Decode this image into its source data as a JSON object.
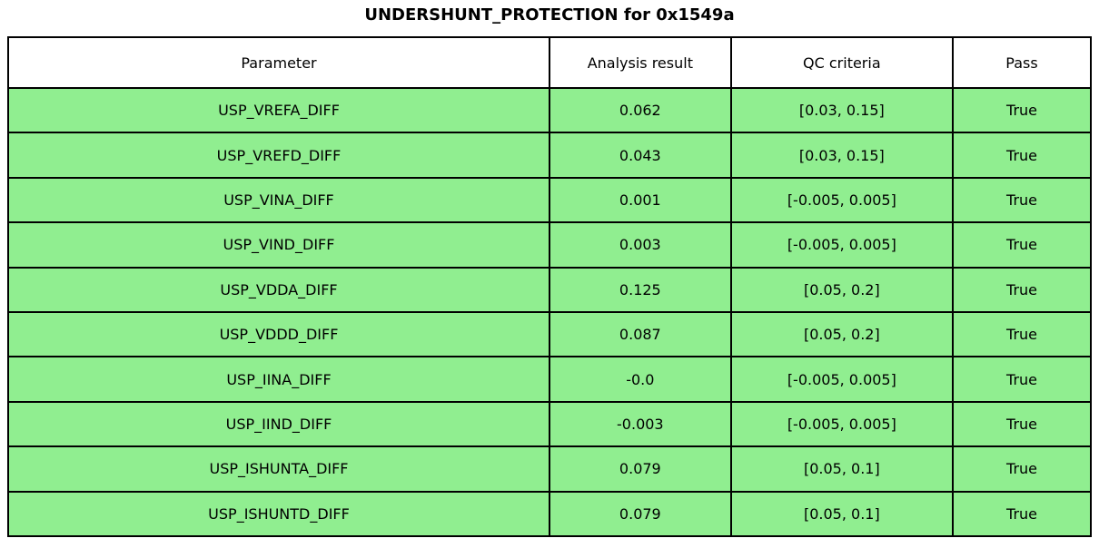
{
  "colors": {
    "background": "#FFFFFF",
    "header_bg": "#FFFFFF",
    "pass_row_bg": "#90EE90",
    "border": "#000000",
    "text": "#000000"
  },
  "chart_data": {
    "type": "table",
    "title": "UNDERSHUNT_PROTECTION for 0x1549a",
    "columns": [
      "Parameter",
      "Analysis result",
      "QC criteria",
      "Pass"
    ],
    "rows": [
      {
        "parameter": "USP_VREFA_DIFF",
        "analysis_result": "0.062",
        "qc_criteria": "[0.03, 0.15]",
        "pass": "True"
      },
      {
        "parameter": "USP_VREFD_DIFF",
        "analysis_result": "0.043",
        "qc_criteria": "[0.03, 0.15]",
        "pass": "True"
      },
      {
        "parameter": "USP_VINA_DIFF",
        "analysis_result": "0.001",
        "qc_criteria": "[-0.005, 0.005]",
        "pass": "True"
      },
      {
        "parameter": "USP_VIND_DIFF",
        "analysis_result": "0.003",
        "qc_criteria": "[-0.005, 0.005]",
        "pass": "True"
      },
      {
        "parameter": "USP_VDDA_DIFF",
        "analysis_result": "0.125",
        "qc_criteria": "[0.05, 0.2]",
        "pass": "True"
      },
      {
        "parameter": "USP_VDDD_DIFF",
        "analysis_result": "0.087",
        "qc_criteria": "[0.05, 0.2]",
        "pass": "True"
      },
      {
        "parameter": "USP_IINA_DIFF",
        "analysis_result": "-0.0",
        "qc_criteria": "[-0.005, 0.005]",
        "pass": "True"
      },
      {
        "parameter": "USP_IIND_DIFF",
        "analysis_result": "-0.003",
        "qc_criteria": "[-0.005, 0.005]",
        "pass": "True"
      },
      {
        "parameter": "USP_ISHUNTA_DIFF",
        "analysis_result": "0.079",
        "qc_criteria": "[0.05, 0.1]",
        "pass": "True"
      },
      {
        "parameter": "USP_ISHUNTD_DIFF",
        "analysis_result": "0.079",
        "qc_criteria": "[0.05, 0.1]",
        "pass": "True"
      }
    ],
    "layout": {
      "grid": "on",
      "header_position": "top",
      "cell_alignment": "center"
    }
  }
}
